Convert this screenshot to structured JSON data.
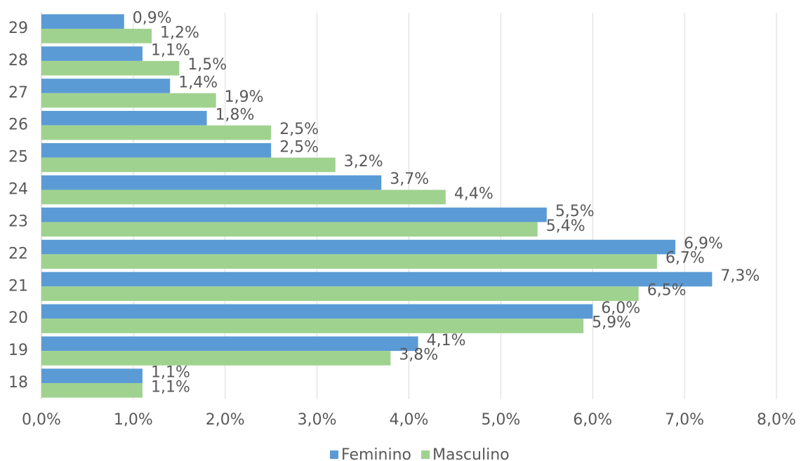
{
  "chart_data": {
    "type": "hbar",
    "categories": [
      "18",
      "19",
      "20",
      "21",
      "22",
      "23",
      "24",
      "25",
      "26",
      "27",
      "28",
      "29"
    ],
    "series": [
      {
        "name": "Feminino",
        "color": "#5b9bd5",
        "values": [
          1.1,
          4.1,
          6.0,
          7.3,
          6.9,
          5.5,
          3.7,
          2.5,
          1.8,
          1.4,
          1.1,
          0.9
        ],
        "value_labels": [
          "1,1%",
          "4,1%",
          "6,0%",
          "7,3%",
          "6,9%",
          "5,5%",
          "3,7%",
          "2,5%",
          "1,8%",
          "1,4%",
          "1,1%",
          "0,9%"
        ]
      },
      {
        "name": "Masculino",
        "color": "#a0d28f",
        "values": [
          1.1,
          3.8,
          5.9,
          6.5,
          6.7,
          5.4,
          4.4,
          3.2,
          2.5,
          1.9,
          1.5,
          1.2
        ],
        "value_labels": [
          "1,1%",
          "3,8%",
          "5,9%",
          "6,5%",
          "6,7%",
          "5,4%",
          "4,4%",
          "3,2%",
          "2,5%",
          "1,9%",
          "1,5%",
          "1,2%"
        ]
      }
    ],
    "xlim": [
      0,
      8
    ],
    "xticks": [
      {
        "value": 0,
        "label": "0,0%"
      },
      {
        "value": 1,
        "label": "1,0%"
      },
      {
        "value": 2,
        "label": "2,0%"
      },
      {
        "value": 3,
        "label": "3,0%"
      },
      {
        "value": 4,
        "label": "4,0%"
      },
      {
        "value": 5,
        "label": "5,0%"
      },
      {
        "value": 6,
        "label": "6,0%"
      },
      {
        "value": 7,
        "label": "7,0%"
      },
      {
        "value": 8,
        "label": "8,0%"
      }
    ],
    "grid": true,
    "legend": "bottom"
  }
}
